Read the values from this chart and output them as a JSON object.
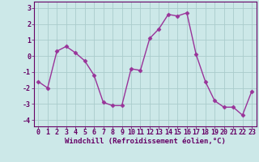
{
  "x": [
    0,
    1,
    2,
    3,
    4,
    5,
    6,
    7,
    8,
    9,
    10,
    11,
    12,
    13,
    14,
    15,
    16,
    17,
    18,
    19,
    20,
    21,
    22,
    23
  ],
  "y": [
    -1.6,
    -2.0,
    0.3,
    0.6,
    0.2,
    -0.3,
    -1.2,
    -2.9,
    -3.1,
    -3.1,
    -0.8,
    -0.9,
    1.1,
    1.7,
    2.6,
    2.5,
    2.7,
    0.1,
    -1.6,
    -2.8,
    -3.2,
    -3.2,
    -3.7,
    -2.2
  ],
  "line_color": "#993399",
  "marker": "D",
  "marker_size": 2.5,
  "bg_color": "#cce8e8",
  "grid_color": "#aacccc",
  "xlabel": "Windchill (Refroidissement éolien,°C)",
  "yticks": [
    -4,
    -3,
    -2,
    -1,
    0,
    1,
    2,
    3
  ],
  "ylim": [
    -4.4,
    3.4
  ],
  "xlim": [
    -0.5,
    23.5
  ],
  "xticks": [
    0,
    1,
    2,
    3,
    4,
    5,
    6,
    7,
    8,
    9,
    10,
    11,
    12,
    13,
    14,
    15,
    16,
    17,
    18,
    19,
    20,
    21,
    22,
    23
  ],
  "font_color": "#660066",
  "linewidth": 1.0,
  "xlabel_fontsize": 6.5,
  "tick_fontsize": 6.0
}
